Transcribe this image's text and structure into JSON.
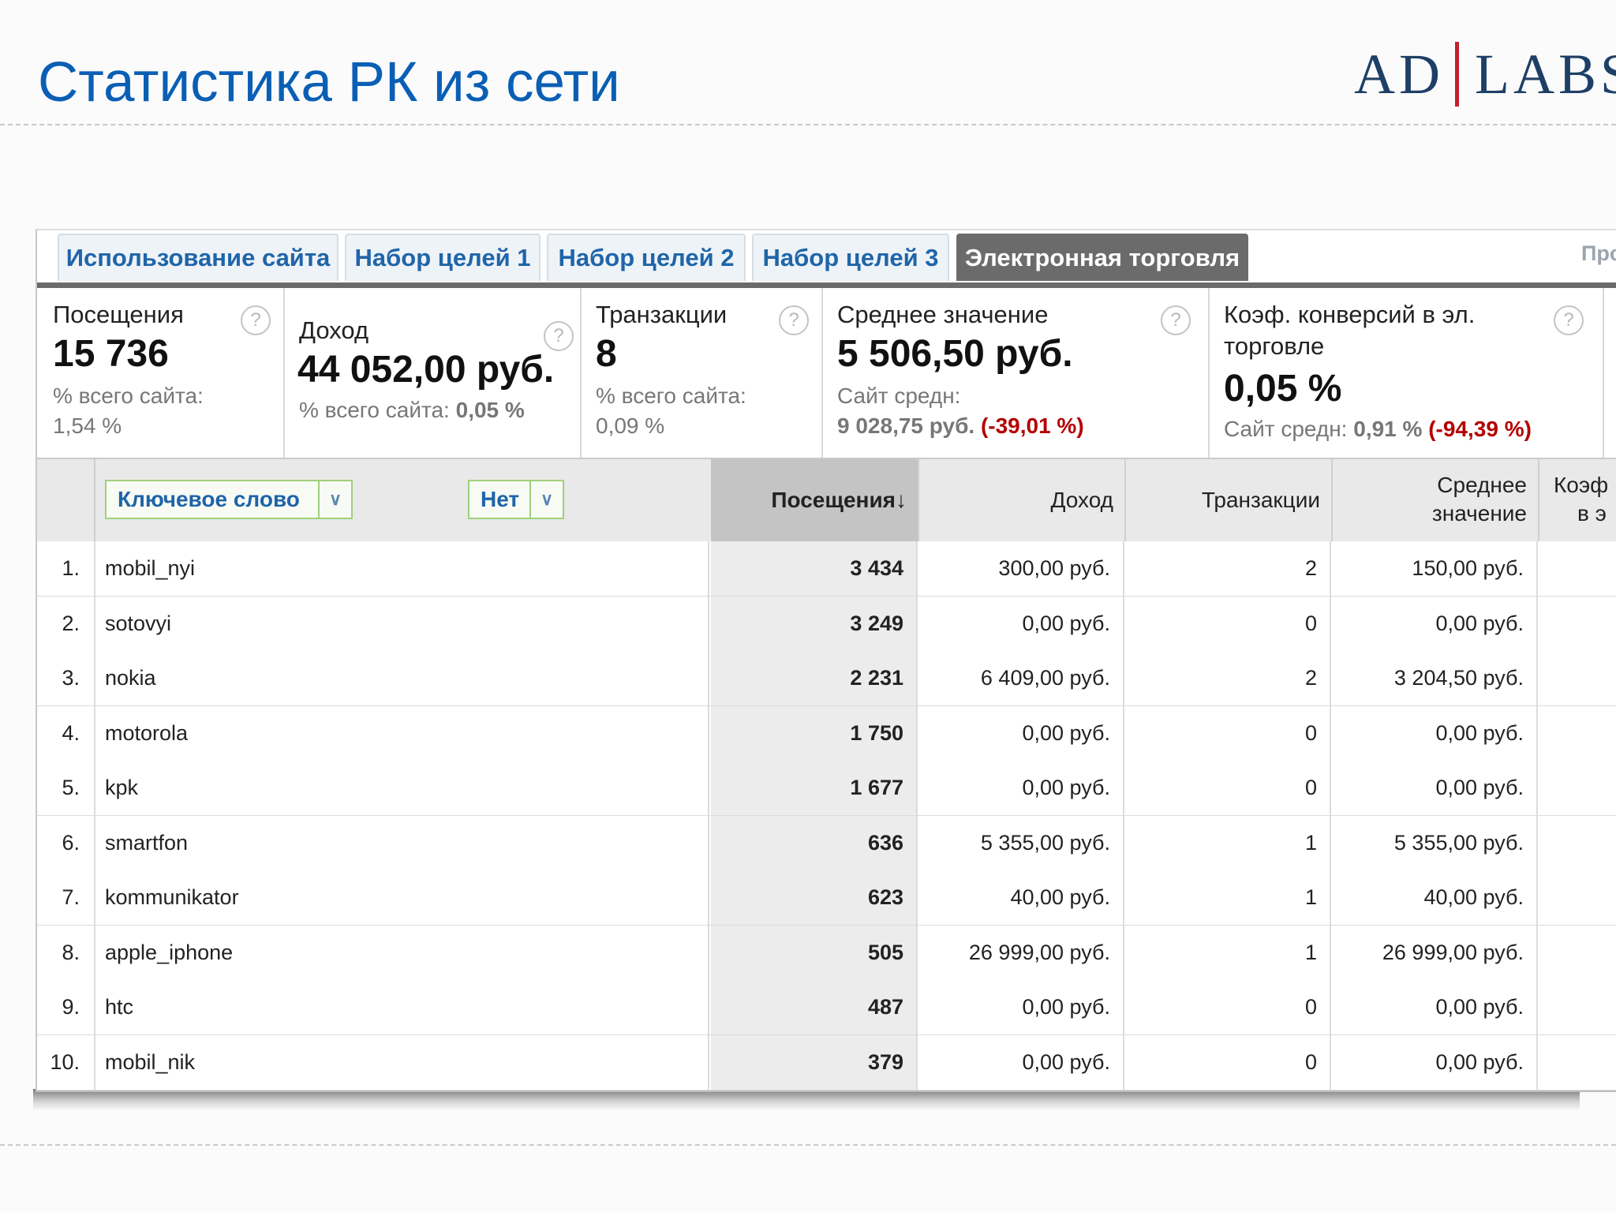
{
  "slide": {
    "title": "Статистика РК из сети",
    "logo_left": "AD",
    "logo_right": "LABS",
    "accent_color": "#0a5fb4",
    "logo_bar_color": "#c41f2d"
  },
  "tabs": [
    {
      "label": "Использование сайта",
      "active": false
    },
    {
      "label": "Набор целей 1",
      "active": false
    },
    {
      "label": "Набор целей 2",
      "active": false
    },
    {
      "label": "Набор целей 3",
      "active": false
    },
    {
      "label": "Электронная торговля",
      "active": true
    }
  ],
  "tab_more": "Про",
  "scorecards": {
    "visits": {
      "label": "Посещения",
      "value": "15 736",
      "sub1": "% всего сайта:",
      "sub2": "1,54 %"
    },
    "revenue": {
      "label": "Доход",
      "value": "44 052,00 руб.",
      "sub_prefix": "% всего сайта: ",
      "sub_value": "0,05 %"
    },
    "transactions": {
      "label": "Транзакции",
      "value": "8",
      "sub1": "% всего сайта:",
      "sub2": "0,09 %"
    },
    "average": {
      "label": "Среднее значение",
      "value": "5 506,50 руб.",
      "sub1": "Сайт средн:",
      "sub2_value": "9 028,75 руб.",
      "sub2_delta": "(-39,01 %)"
    },
    "conversion": {
      "label_line1": "Коэф. конверсий в эл.",
      "label_line2": "торговле",
      "value": "0,05 %",
      "sub_prefix": "Сайт средн: ",
      "sub_value": "0,91 %",
      "sub_delta": "(-94,39 %)"
    },
    "help_glyph": "?",
    "negative_color": "#b40000"
  },
  "table": {
    "dimension_select": "Ключевое слово",
    "secondary_select": "Нет",
    "headers": {
      "visits": "Посещения",
      "sort_arrow": "↓",
      "revenue": "Доход",
      "transactions": "Транзакции",
      "average_line1": "Среднее",
      "average_line2": "значение",
      "conv_line1": "Коэф",
      "conv_line2": "в э"
    },
    "rows": [
      {
        "n": "1.",
        "keyword": "mobil_nyi",
        "visits": "3 434",
        "revenue": "300,00 руб.",
        "transactions": "2",
        "average": "150,00 руб."
      },
      {
        "n": "2.",
        "keyword": "sotovyi",
        "visits": "3 249",
        "revenue": "0,00 руб.",
        "transactions": "0",
        "average": "0,00 руб."
      },
      {
        "n": "3.",
        "keyword": "nokia",
        "visits": "2 231",
        "revenue": "6 409,00 руб.",
        "transactions": "2",
        "average": "3 204,50 руб."
      },
      {
        "n": "4.",
        "keyword": "motorola",
        "visits": "1 750",
        "revenue": "0,00 руб.",
        "transactions": "0",
        "average": "0,00 руб."
      },
      {
        "n": "5.",
        "keyword": "kpk",
        "visits": "1 677",
        "revenue": "0,00 руб.",
        "transactions": "0",
        "average": "0,00 руб."
      },
      {
        "n": "6.",
        "keyword": "smartfon",
        "visits": "636",
        "revenue": "5 355,00 руб.",
        "transactions": "1",
        "average": "5 355,00 руб."
      },
      {
        "n": "7.",
        "keyword": "kommunikator",
        "visits": "623",
        "revenue": "40,00 руб.",
        "transactions": "1",
        "average": "40,00 руб."
      },
      {
        "n": "8.",
        "keyword": "apple_iphone",
        "visits": "505",
        "revenue": "26 999,00 руб.",
        "transactions": "1",
        "average": "26 999,00 руб."
      },
      {
        "n": "9.",
        "keyword": "htc",
        "visits": "487",
        "revenue": "0,00 руб.",
        "transactions": "0",
        "average": "0,00 руб."
      },
      {
        "n": "10.",
        "keyword": "mobil_nik",
        "visits": "379",
        "revenue": "0,00 руб.",
        "transactions": "0",
        "average": "0,00 руб."
      }
    ]
  }
}
